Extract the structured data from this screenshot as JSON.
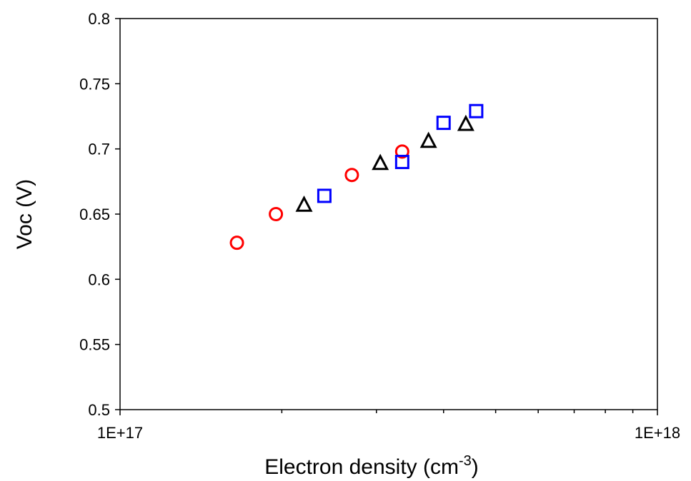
{
  "chart_data": {
    "type": "scatter",
    "title": "",
    "xlabel": "Electron density (cm",
    "xlabel_superscript": "-3",
    "xlabel_suffix": ")",
    "ylabel": "Voc (V)",
    "x_scale": "log",
    "xlim": [
      1e+17,
      1e+18
    ],
    "ylim": [
      0.5,
      0.8
    ],
    "x_tick_labels": [
      "1E+17",
      "1E+18"
    ],
    "y_tick_labels": [
      "0.5",
      "0.55",
      "0.6",
      "0.65",
      "0.7",
      "0.75",
      "0.8"
    ],
    "y_tick_values": [
      0.5,
      0.55,
      0.6,
      0.65,
      0.7,
      0.75,
      0.8
    ],
    "grid": false,
    "legend": "none",
    "series": [
      {
        "marker": "circle",
        "color": "#ff0000",
        "points": [
          {
            "x": 1.65e+17,
            "y": 0.628
          },
          {
            "x": 1.95e+17,
            "y": 0.65
          },
          {
            "x": 2.7e+17,
            "y": 0.68
          },
          {
            "x": 3.35e+17,
            "y": 0.698
          }
        ]
      },
      {
        "marker": "triangle",
        "color": "#000000",
        "points": [
          {
            "x": 2.2e+17,
            "y": 0.657
          },
          {
            "x": 3.05e+17,
            "y": 0.689
          },
          {
            "x": 3.75e+17,
            "y": 0.706
          },
          {
            "x": 4.4e+17,
            "y": 0.719
          }
        ]
      },
      {
        "marker": "square",
        "color": "#0000ff",
        "points": [
          {
            "x": 2.4e+17,
            "y": 0.664
          },
          {
            "x": 3.35e+17,
            "y": 0.69
          },
          {
            "x": 4e+17,
            "y": 0.72
          },
          {
            "x": 4.6e+17,
            "y": 0.729
          }
        ]
      }
    ]
  }
}
